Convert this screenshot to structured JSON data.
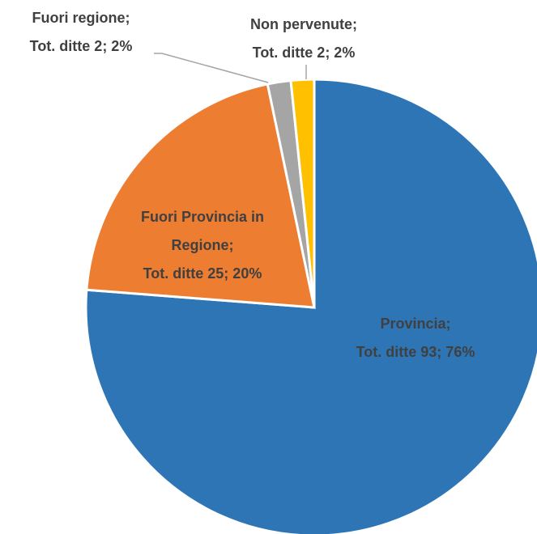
{
  "chart_data": {
    "type": "pie",
    "categories": [
      "Provincia;",
      "Fuori Provincia in Regione;",
      "Fuori regione;",
      "Non pervenute;"
    ],
    "values": [
      93,
      25,
      2,
      2
    ],
    "value_labels": [
      "Tot. ditte 93; 76%",
      "Tot. ditte 25; 20%",
      "Tot. ditte 2; 2%",
      "Tot. ditte 2; 2%"
    ],
    "colors": [
      "#2e75b6",
      "#ed7d31",
      "#a5a5a5",
      "#ffc000"
    ]
  }
}
